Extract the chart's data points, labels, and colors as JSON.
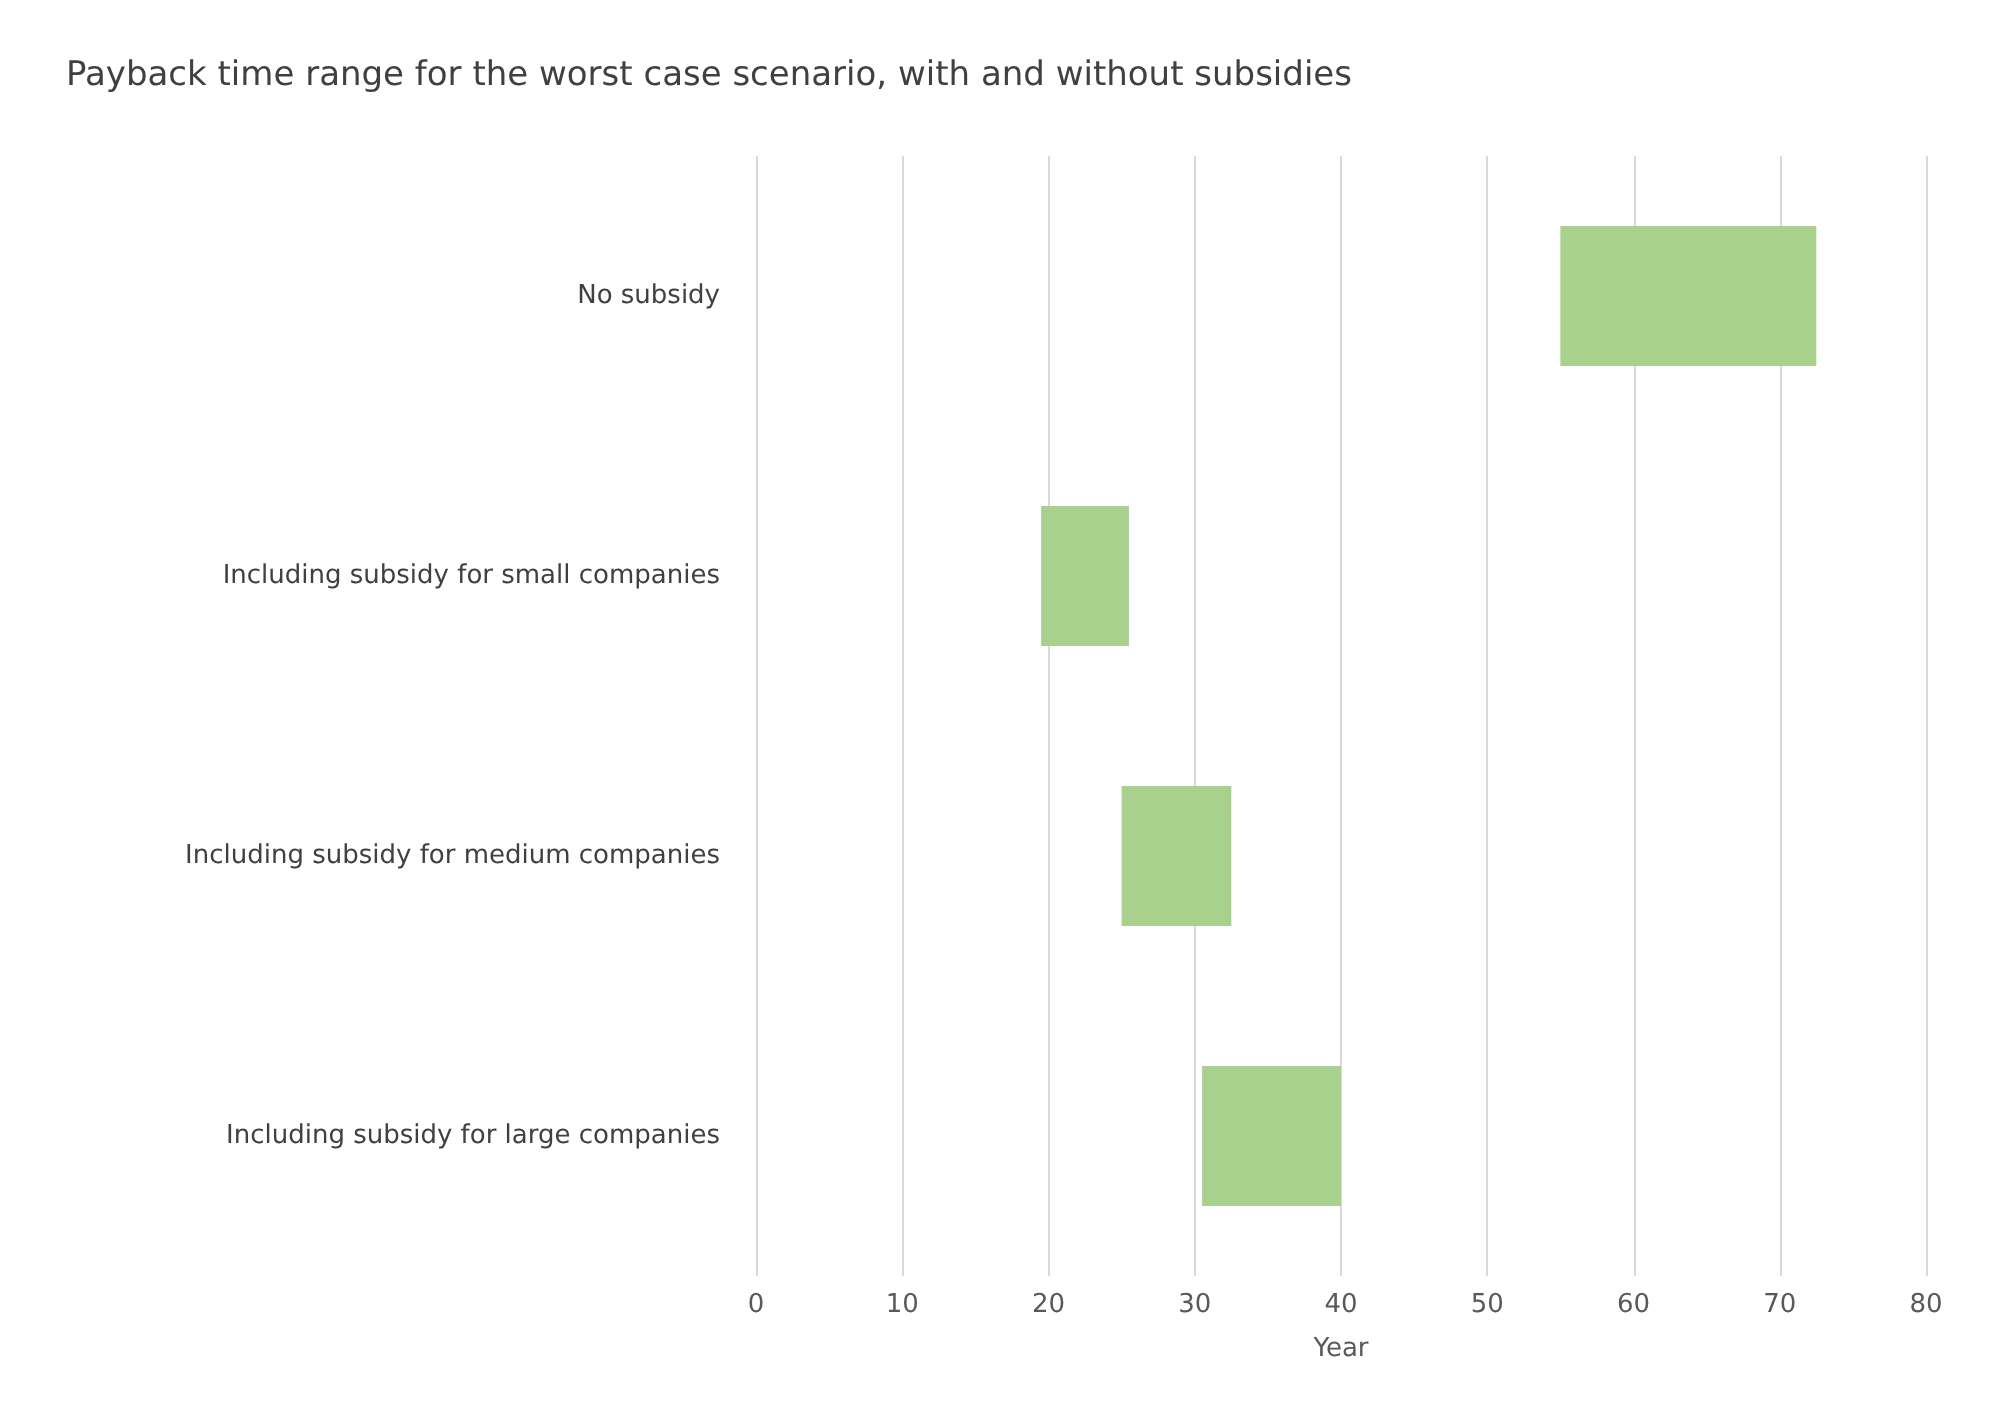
{
  "chart_data": {
    "type": "bar",
    "orientation": "horizontal",
    "title": "Payback time range for the worst case scenario, with and without subsidies",
    "xlabel": "Year",
    "categories": [
      "No subsidy",
      "Including subsidy for small companies",
      "Including subsidy for medium companies",
      "Including subsidy for large companies"
    ],
    "base": [
      55,
      19.5,
      25,
      30.5
    ],
    "values": [
      17.5,
      6,
      7.5,
      9.5
    ],
    "color": "#a9d18e",
    "xlim": [
      0,
      80
    ],
    "xticks": [
      0,
      10,
      20,
      30,
      40,
      50,
      60,
      70,
      80
    ],
    "grid": "x"
  }
}
